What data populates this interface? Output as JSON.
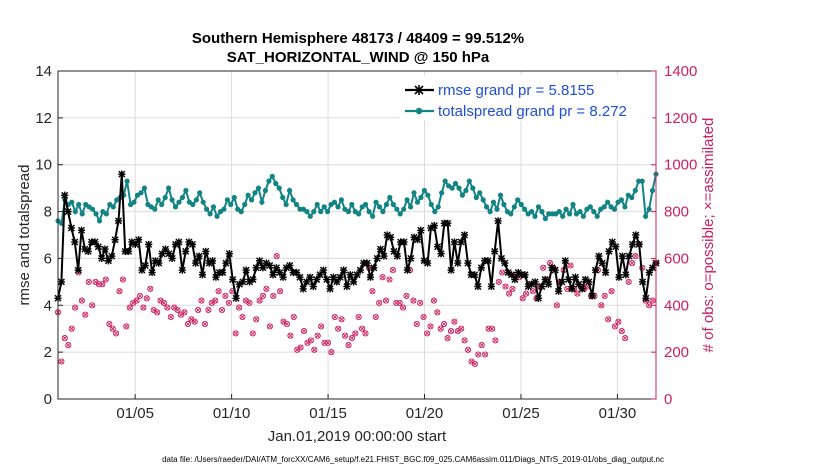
{
  "chart_data": {
    "type": "line",
    "title": "Southern Hemisphere 48173 / 48409 = 99.512%",
    "subtitle": "SAT_HORIZONTAL_WIND @ 150 hPa",
    "xlabel": "Jan.01,2019 00:00:00 start",
    "ylabel": "rmse and totalspread",
    "ylabel_right": "# of obs: o=possible; ×=assimilated",
    "footnote": "data file: /Users/raeder/DAI/ATM_forcXX/CAM6_setup/f.e21.FHIST_BGC.f09_025.CAM6assim.011/Diags_NTrS_2019-01/obs_diag_output.nc",
    "x_ticks": [
      5,
      10,
      15,
      20,
      25,
      30
    ],
    "x_tick_labels": [
      "01/05",
      "01/10",
      "01/15",
      "01/20",
      "01/25",
      "01/30"
    ],
    "xlim": [
      1,
      32
    ],
    "ylim": [
      0,
      14
    ],
    "y_ticks": [
      0,
      2,
      4,
      6,
      8,
      10,
      12,
      14
    ],
    "y_tick_labels": [
      "0",
      "2",
      "4",
      "6",
      "8",
      "10",
      "12",
      "14"
    ],
    "ylim_right": [
      0,
      1400
    ],
    "y_ticks_right": [
      0,
      200,
      400,
      600,
      800,
      1000,
      1200,
      1400
    ],
    "y_tick_labels_right": [
      "0",
      "200",
      "400",
      "600",
      "800",
      "1000",
      "1200",
      "1400"
    ],
    "grid": true,
    "legend_position": "top-right",
    "colors": {
      "rmse": "#000000",
      "spread": "#128484",
      "obs": "#cc1f5f",
      "axis": "#262626"
    },
    "series": [
      {
        "name": "rmse",
        "legend": "rmse grand pr = 5.8155",
        "values": [
          4.3,
          5.0,
          8.7,
          8.0,
          7.3,
          6.7,
          5.5,
          7.2,
          6.4,
          6.3,
          6.7,
          6.7,
          6.5,
          6.0,
          6.4,
          5.9,
          6.1,
          6.8,
          7.6,
          9.6,
          6.3,
          6.3,
          6.7,
          6.6,
          6.8,
          5.5,
          5.7,
          6.6,
          5.4,
          5.9,
          5.8,
          6.2,
          6.4,
          6.2,
          6.0,
          6.6,
          6.7,
          5.5,
          6.3,
          6.7,
          6.6,
          5.8,
          6.1,
          5.3,
          6.3,
          5.8,
          5.9,
          5.2,
          5.4,
          5.4,
          5.8,
          6.2,
          5.1,
          4.3,
          4.9,
          5.0,
          5.5,
          5.0,
          5.1,
          5.6,
          5.9,
          5.6,
          5.8,
          5.7,
          5.3,
          5.6,
          5.4,
          5.2,
          5.6,
          5.7,
          5.4,
          5.4,
          5.2,
          4.7,
          5.0,
          5.2,
          4.8,
          5.1,
          5.3,
          5.5,
          5.1,
          4.7,
          5.2,
          5.0,
          5.2,
          5.5,
          4.8,
          5.3,
          5.0,
          5.3,
          5.5,
          5.8,
          5.8,
          5.2,
          5.6,
          6.0,
          6.4,
          6.1,
          7.0,
          6.9,
          6.3,
          6.1,
          6.7,
          6.7,
          5.5,
          6.0,
          6.9,
          6.8,
          7.2,
          5.9,
          5.8,
          7.3,
          7.4,
          6.5,
          6.2,
          7.5,
          7.5,
          5.5,
          6.7,
          5.8,
          6.7,
          7.0,
          5.8,
          5.3,
          5.3,
          4.8,
          5.6,
          5.9,
          5.9,
          4.8,
          6.3,
          7.6,
          6.0,
          5.8,
          5.4,
          5.3,
          5.1,
          5.4,
          5.3,
          5.3,
          4.8,
          4.9,
          5.0,
          4.3,
          4.8,
          5.1,
          4.9,
          5.6,
          5.5,
          4.6,
          5.0,
          5.9,
          5.1,
          4.7,
          5.2,
          4.9,
          4.7,
          5.1,
          5.0,
          4.4,
          5.5,
          6.1,
          5.8,
          5.4,
          6.3,
          6.7,
          6.5,
          5.2,
          6.1,
          5.3,
          6.1,
          6.6,
          7.0,
          6.6,
          5.0,
          4.3,
          5.4,
          5.6,
          5.8
        ]
      },
      {
        "name": "totalspread",
        "legend": "totalspread grand pr = 8.272",
        "values": [
          7.6,
          7.5,
          8.5,
          8.3,
          8.4,
          8.0,
          8.3,
          7.9,
          8.3,
          8.2,
          8.1,
          7.9,
          7.6,
          8.0,
          7.9,
          8.3,
          8.2,
          8.5,
          8.6,
          8.7,
          9.3,
          8.3,
          8.4,
          8.7,
          8.8,
          9.0,
          8.3,
          8.2,
          8.1,
          8.5,
          8.3,
          8.6,
          9.0,
          8.5,
          8.2,
          8.4,
          8.6,
          8.9,
          8.4,
          8.3,
          8.5,
          8.8,
          8.4,
          8.1,
          7.9,
          8.2,
          7.8,
          8.0,
          8.1,
          8.5,
          8.3,
          8.6,
          8.1,
          8.0,
          8.3,
          8.7,
          8.5,
          8.8,
          9.0,
          8.4,
          8.9,
          9.3,
          9.5,
          9.2,
          9.0,
          8.6,
          8.3,
          8.9,
          8.5,
          8.3,
          8.1,
          8.1,
          8.0,
          7.8,
          8.0,
          8.3,
          8.0,
          8.2,
          8.0,
          8.3,
          8.4,
          8.2,
          8.5,
          8.1,
          8.0,
          8.3,
          8.0,
          7.9,
          8.2,
          8.3,
          8.0,
          7.8,
          8.4,
          8.2,
          8.0,
          8.3,
          8.6,
          8.3,
          8.1,
          7.9,
          8.1,
          8.5,
          8.2,
          8.8,
          8.4,
          8.6,
          8.9,
          8.7,
          8.3,
          8.0,
          8.2,
          8.8,
          9.3,
          9.1,
          9.0,
          9.2,
          9.0,
          8.7,
          8.9,
          9.3,
          9.0,
          8.6,
          8.8,
          8.5,
          8.2,
          8.0,
          8.4,
          8.1,
          8.7,
          8.3,
          8.0,
          7.9,
          8.2,
          8.5,
          8.3,
          8.1,
          7.9,
          8.0,
          7.8,
          8.2,
          8.0,
          7.7,
          7.9,
          7.9,
          7.9,
          8.0,
          7.8,
          8.1,
          7.9,
          8.3,
          7.9,
          8.0,
          7.8,
          8.1,
          8.2,
          8.0,
          7.8,
          8.1,
          8.2,
          8.4,
          8.2,
          8.1,
          8.4,
          8.5,
          8.2,
          8.7,
          8.6,
          8.9,
          9.3,
          9.3,
          7.8,
          8.1,
          8.9,
          9.6
        ]
      },
      {
        "name": "obs_assimilated",
        "axis": "right",
        "values": [
          370,
          160,
          260,
          230,
          300,
          390,
          540,
          420,
          360,
          500,
          400,
          500,
          490,
          490,
          510,
          320,
          300,
          280,
          460,
          510,
          310,
          390,
          410,
          420,
          440,
          390,
          430,
          470,
          380,
          370,
          420,
          410,
          390,
          350,
          390,
          380,
          360,
          370,
          320,
          340,
          330,
          380,
          420,
          320,
          380,
          410,
          420,
          460,
          380,
          440,
          410,
          460,
          280,
          390,
          350,
          420,
          410,
          280,
          340,
          420,
          440,
          470,
          310,
          440,
          610,
          460,
          330,
          320,
          270,
          350,
          210,
          220,
          290,
          240,
          250,
          210,
          270,
          310,
          240,
          240,
          200,
          350,
          300,
          340,
          270,
          230,
          260,
          280,
          350,
          300,
          280,
          560,
          460,
          350,
          410,
          520,
          420,
          510,
          550,
          410,
          410,
          390,
          440,
          550,
          420,
          320,
          410,
          350,
          280,
          310,
          420,
          370,
          300,
          320,
          260,
          290,
          330,
          290,
          300,
          250,
          210,
          160,
          150,
          190,
          230,
          190,
          300,
          300,
          250,
          500,
          540,
          480,
          450,
          470,
          530,
          520,
          430,
          450,
          490,
          460,
          430,
          480,
          560,
          510,
          580,
          560,
          400,
          500,
          550,
          470,
          570,
          470,
          450,
          480,
          470,
          480,
          440,
          440,
          550,
          400,
          440,
          340,
          460,
          310,
          330,
          290,
          260,
          500,
          580,
          610,
          660,
          560,
          420,
          400,
          420,
          580
        ]
      }
    ]
  }
}
